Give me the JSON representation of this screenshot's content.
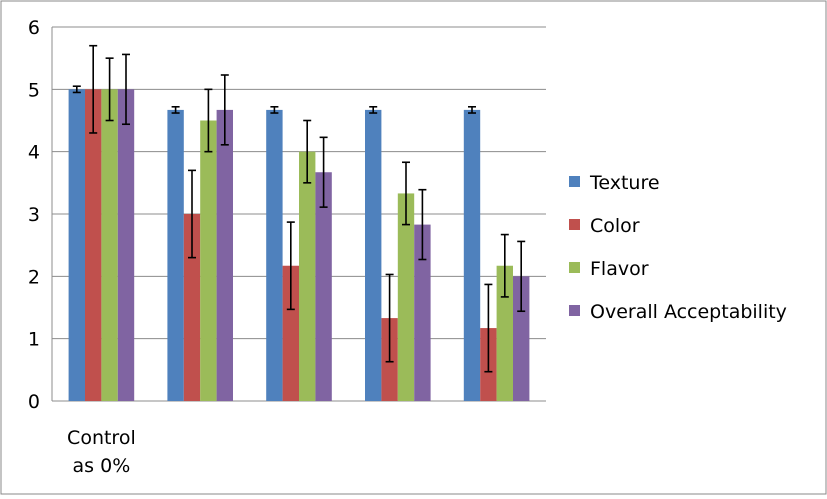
{
  "chart_data": {
    "type": "bar",
    "title": "",
    "xlabel": "",
    "ylabel": "",
    "ylim": [
      0,
      6
    ],
    "yticks": [
      "0",
      "1",
      "2",
      "3",
      "4",
      "5",
      "6"
    ],
    "grid": true,
    "legend_position": "right",
    "categories": [
      "Control\nas 0%",
      "",
      "",
      "",
      ""
    ],
    "category_lines": [
      [
        "Control",
        "as 0%"
      ],
      [],
      [],
      [],
      []
    ],
    "series": [
      {
        "name": "Texture",
        "color": "#4F81BD",
        "values": [
          5.0,
          4.67,
          4.67,
          4.67,
          4.67
        ],
        "errors": [
          0.05,
          0.05,
          0.05,
          0.05,
          0.05
        ]
      },
      {
        "name": "Color",
        "color": "#C0504D",
        "values": [
          5.0,
          3.0,
          2.17,
          1.33,
          1.17
        ],
        "errors": [
          0.7,
          0.7,
          0.7,
          0.7,
          0.7
        ]
      },
      {
        "name": "Flavor",
        "color": "#9BBB59",
        "values": [
          5.0,
          4.5,
          4.0,
          3.33,
          2.17
        ],
        "errors": [
          0.5,
          0.5,
          0.5,
          0.5,
          0.5
        ]
      },
      {
        "name": "Overall Acceptability",
        "color": "#8064A2",
        "values": [
          5.0,
          4.67,
          3.67,
          2.83,
          2.0
        ],
        "errors": [
          0.56,
          0.56,
          0.56,
          0.56,
          0.56
        ]
      }
    ]
  }
}
